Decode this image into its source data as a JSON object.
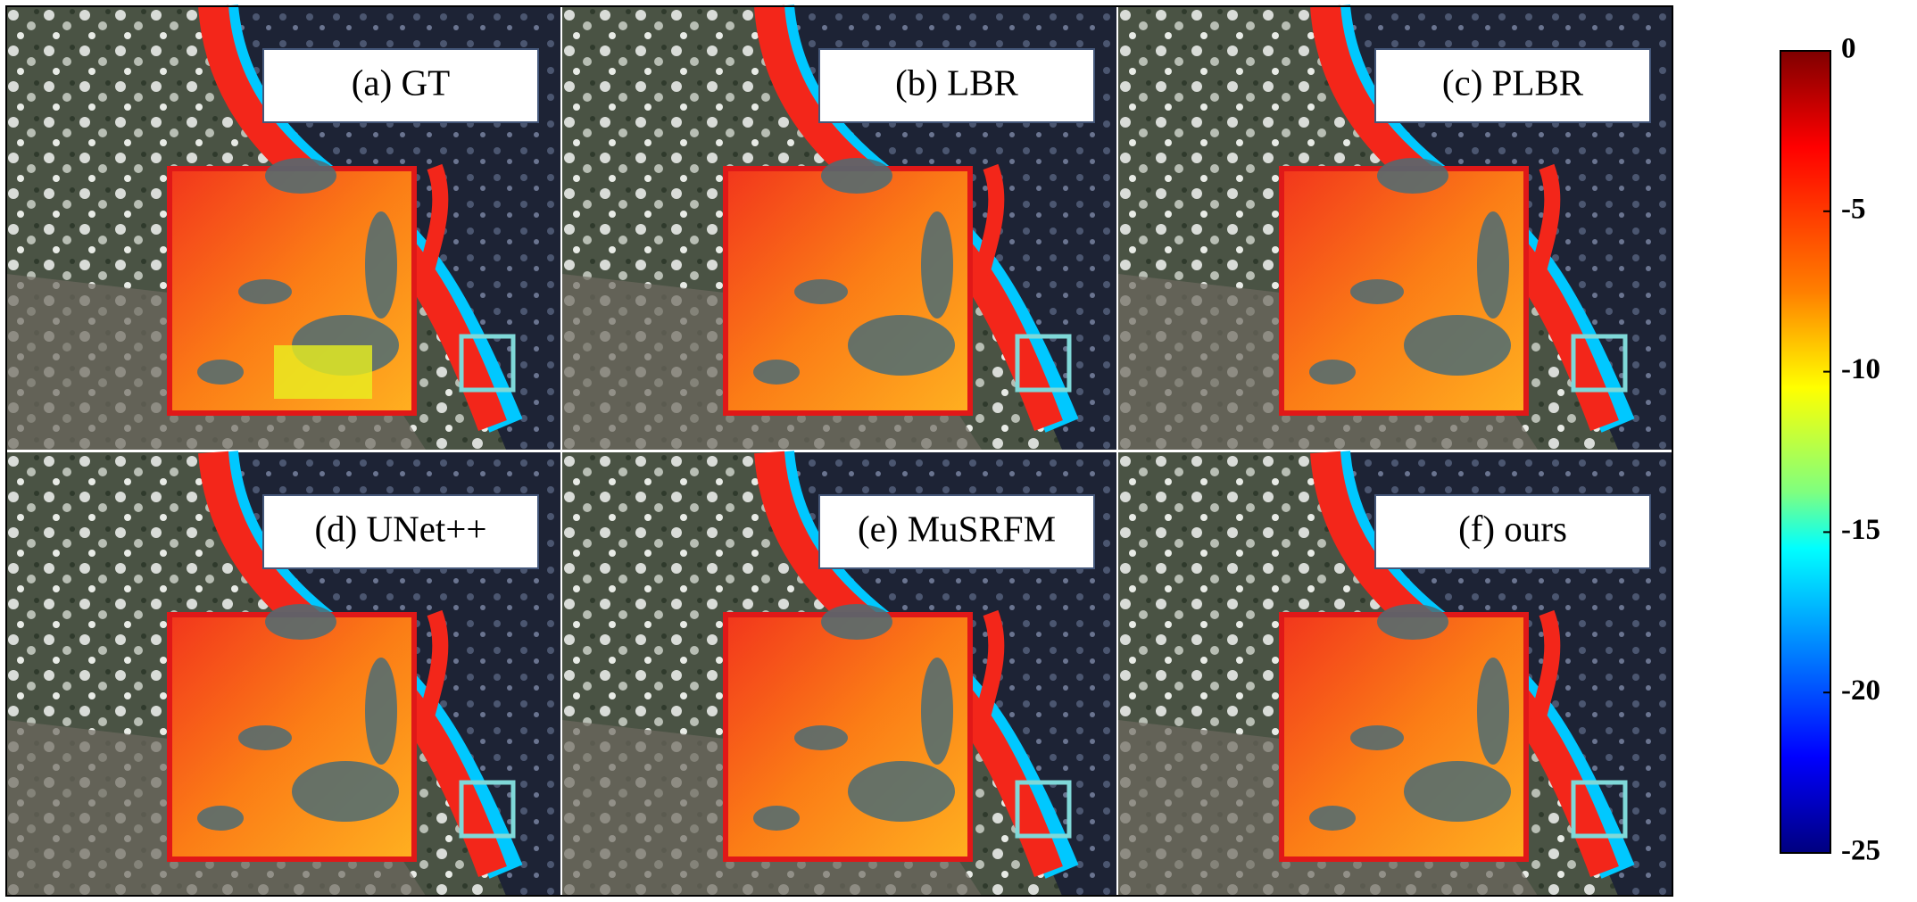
{
  "panels": [
    "(a) GT",
    "(b) LBR",
    "(c) PLBR",
    "(d) UNet++",
    "(e) MuSRFM",
    "(f) ours"
  ],
  "colorbar": {
    "range": [
      -25,
      0
    ],
    "ticks": [
      0,
      -5,
      -10,
      -15,
      -20,
      -25
    ]
  }
}
